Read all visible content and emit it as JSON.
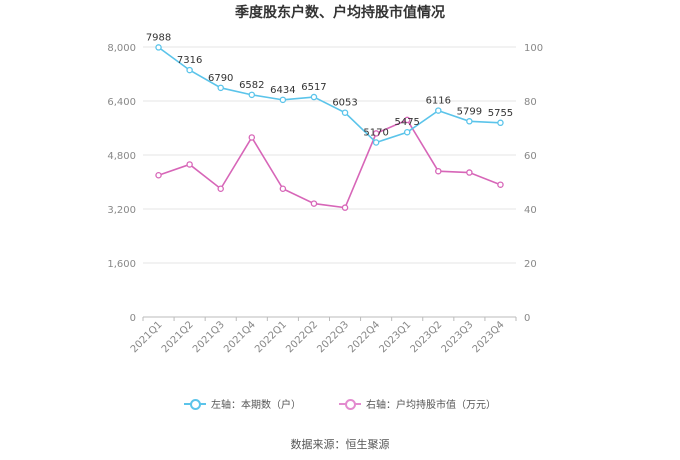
{
  "chart_data": {
    "type": "line",
    "title": "季度股东户数、户均持股市值情况",
    "categories": [
      "2021Q1",
      "2021Q2",
      "2021Q3",
      "2021Q4",
      "2022Q1",
      "2022Q2",
      "2022Q3",
      "2022Q4",
      "2023Q1",
      "2023Q2",
      "2023Q3",
      "2023Q4"
    ],
    "left_axis": {
      "ylim": [
        0,
        8000
      ],
      "ticks": [
        "0",
        "1,600",
        "3,200",
        "4,800",
        "6,400",
        "8,000"
      ],
      "tick_values": [
        0,
        1600,
        3200,
        4800,
        6400,
        8000
      ]
    },
    "right_axis": {
      "ylim": [
        0,
        100
      ],
      "ticks": [
        "0",
        "20",
        "40",
        "60",
        "80",
        "100"
      ],
      "tick_values": [
        0,
        20,
        40,
        60,
        80,
        100
      ]
    },
    "series": [
      {
        "name": "左轴：本期数（户）",
        "axis": "left",
        "color": "#5bc4ea",
        "values": [
          7988,
          7316,
          6790,
          6582,
          6434,
          6517,
          6053,
          5170,
          5475,
          6116,
          5799,
          5755
        ],
        "labels": [
          "7988",
          "7316",
          "6790",
          "6582",
          "6434",
          "6517",
          "6053",
          "5170",
          "5475",
          "6116",
          "5799",
          "5755"
        ]
      },
      {
        "name": "右轴：户均持股市值（万元）",
        "axis": "right",
        "color": "#d766b8",
        "values": [
          52.5,
          56.5,
          47.5,
          66.5,
          47.5,
          42,
          40.5,
          68,
          73,
          54,
          53.5,
          49
        ]
      }
    ],
    "grid": true,
    "legend_position": "bottom"
  },
  "footer": {
    "source": "数据来源：恒生聚源"
  }
}
